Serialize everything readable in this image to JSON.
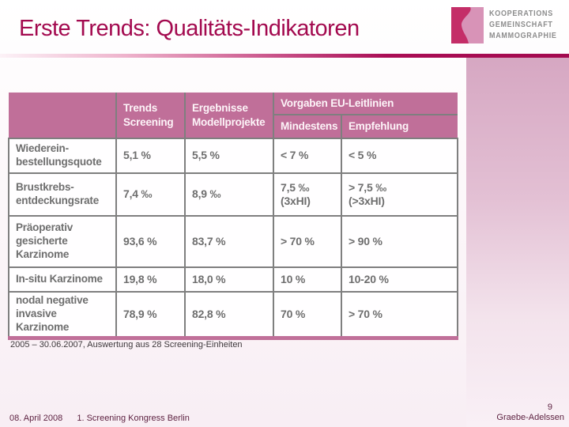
{
  "slide": {
    "title": "Erste Trends: Qualitäts-Indikatoren",
    "footnote": "2005 – 30.06.2007, Auswertung aus 28 Screening-Einheiten",
    "footer": {
      "date": "08. April 2008",
      "event": "1. Screening Kongress Berlin",
      "author": "Graebe-Adelssen",
      "page_number": "9"
    }
  },
  "logo": {
    "name": "Kooperationsgemeinschaft Mammographie",
    "lines": [
      "KOOPERATIONS",
      "GEMEINSCHAFT",
      "MAMMOGRAPHIE"
    ]
  },
  "table": {
    "header": {
      "trends": "Trends\nScreening",
      "ergebnisse": "Ergebnisse\nModellprojekte",
      "vorgaben_group": "Vorgaben EU-Leitlinien",
      "mindestens": "Mindestens",
      "empfehlung": "Empfehlung"
    },
    "rows": [
      {
        "label": "Wiederein-\nbestellungsquote",
        "values": [
          "5,1 %",
          "5,5 %",
          "< 7 %",
          "< 5 %"
        ]
      },
      {
        "label": "Brustkrebs-\nentdeckungsrate",
        "values": [
          "7,4 ‰",
          "8,9 ‰",
          "7,5 ‰\n(3xHI)",
          "> 7,5 ‰\n(>3xHI)"
        ]
      },
      {
        "label": "Präoperativ\ngesicherte\nKarzinome",
        "values": [
          "93,6 %",
          "83,7 %",
          "> 70 %",
          "> 90 %"
        ]
      },
      {
        "label": "In-situ Karzinome",
        "values": [
          "19,8 %",
          "18,0 %",
          "10 %",
          "10-20 %"
        ]
      },
      {
        "label": "nodal negative\ninvasive Karzinome",
        "values": [
          "78,9 %",
          "82,8 %",
          "70 %",
          "> 70 %"
        ]
      }
    ]
  },
  "colors": {
    "brand_magenta": "#a30a4f",
    "header_bg": "#c06f99",
    "table_text": "#6e6e6e",
    "border_gray": "#7f7f7f",
    "logo_dark_pink": "#c42e68",
    "logo_light_pink": "#d893b7",
    "logo_text_gray": "#8c8c8c",
    "footer_maroon": "#5e2342",
    "footnote_color": "#3f393c",
    "side_panel_top": "#d6a7c2",
    "side_panel_bottom": "#f9f0f6"
  }
}
